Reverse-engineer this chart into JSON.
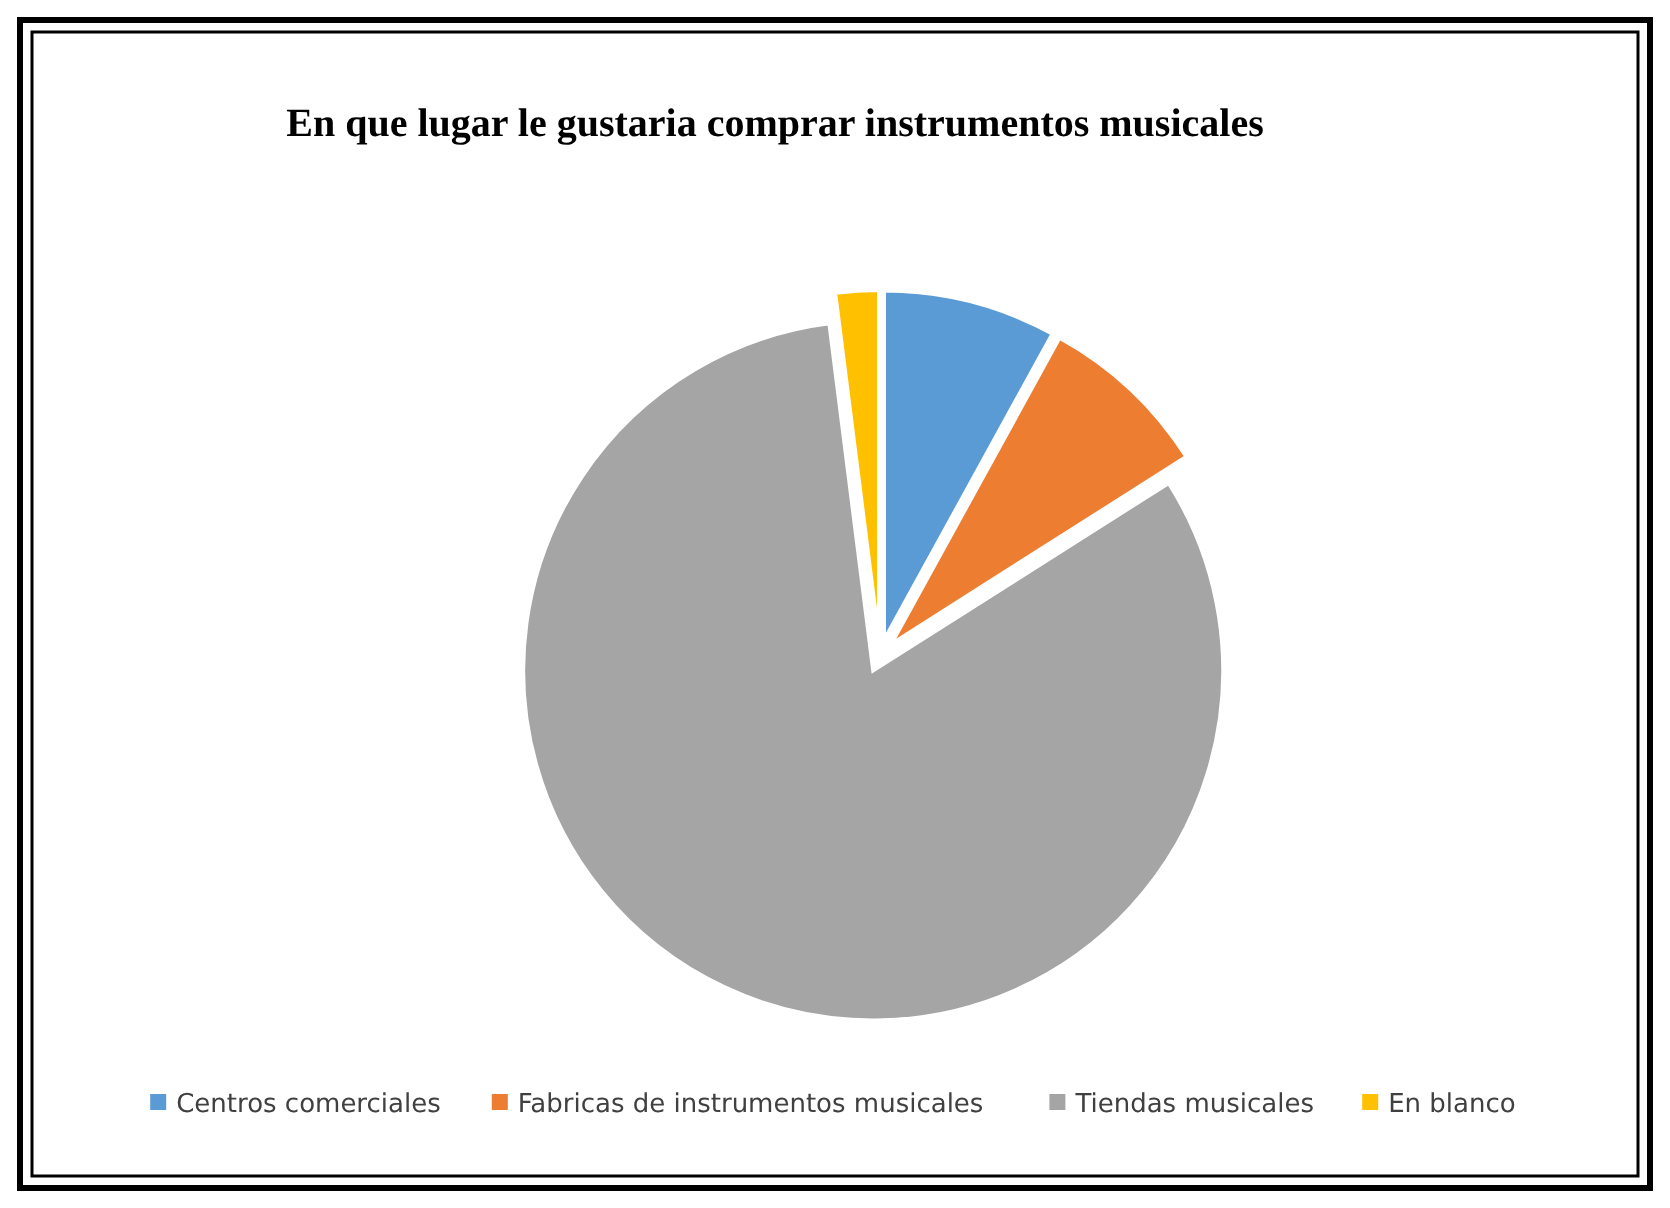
{
  "chart_data": {
    "type": "pie",
    "title": "En que lugar le gustaria comprar instrumentos musicales",
    "categories": [
      "Centros comerciales",
      "Fabricas de instrumentos musicales",
      "Tiendas musicales",
      "En blanco"
    ],
    "values": [
      8,
      8,
      82,
      2
    ],
    "colors": [
      "#5b9bd5",
      "#ed7d31",
      "#a5a5a5",
      "#ffc000"
    ],
    "legend": "bottom"
  }
}
